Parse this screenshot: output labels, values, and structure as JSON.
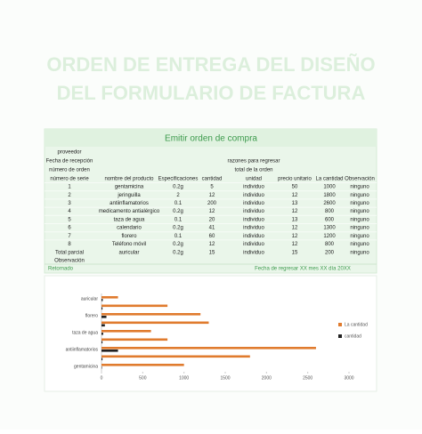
{
  "header": {
    "title_lines": [
      "ORDEN DE ENTREGA DEL DISEÑO",
      "DEL FORMULARIO DE FACTURA"
    ]
  },
  "table": {
    "caption": "Emitir orden de compra",
    "info_rows": [
      [
        "proveedor"
      ],
      [
        "Fecha de recepción",
        "razones para regresar"
      ],
      [
        "número de orden",
        "total de la orden"
      ]
    ],
    "columns": [
      "número de serie",
      "nombre del producto",
      "Especificaciones",
      "cantidad",
      "unidad",
      "precio unitario",
      "La cantidad",
      "Observación"
    ],
    "rows": [
      [
        1,
        "gentamicina",
        "0.2g",
        5,
        "individuo",
        50,
        1000,
        "ninguno"
      ],
      [
        2,
        "jeringuilla",
        2,
        12,
        "individuo",
        12,
        1800,
        "ninguno"
      ],
      [
        3,
        "antiinflamatorios",
        0.1,
        200,
        "individuo",
        13,
        2600,
        "ninguno"
      ],
      [
        4,
        "medicamento antialérgico",
        "0.2g",
        12,
        "individuo",
        12,
        800,
        "ninguno"
      ],
      [
        5,
        "taza de agua",
        0.1,
        20,
        "individuo",
        13,
        600,
        "ninguno"
      ],
      [
        6,
        "calendario",
        "0.2g",
        41,
        "individuo",
        12,
        1300,
        "ninguno"
      ],
      [
        7,
        "florero",
        0.1,
        60,
        "individuo",
        12,
        1200,
        "ninguno"
      ],
      [
        8,
        "Teléfono móvil",
        "0.2g",
        12,
        "individuo",
        12,
        800,
        "ninguno"
      ]
    ],
    "subtotal": [
      "Total parcial",
      "auricular",
      "0.2g",
      15,
      "individuo",
      15,
      200,
      "ninguno"
    ],
    "observation": "Observación"
  },
  "footer": {
    "left": "Retornado",
    "right": "Fecha de regresar XX mes XX día 20XX"
  },
  "chart_data": {
    "type": "barh",
    "categories": [
      "gentamicina",
      null,
      "antiinflamatorios",
      null,
      "taza de agua",
      null,
      "florero",
      null,
      "auricular"
    ],
    "series": [
      {
        "name": "La cantidad",
        "color": "#e07b2e",
        "values": [
          1000,
          1800,
          2600,
          800,
          600,
          1300,
          1200,
          800,
          200
        ]
      },
      {
        "name": "cantidad",
        "color": "#222222",
        "values": [
          5,
          12,
          200,
          12,
          20,
          41,
          60,
          12,
          15
        ]
      }
    ],
    "xlim": [
      0,
      3000
    ],
    "xticks": [
      0,
      500,
      1000,
      1500,
      2000,
      2500,
      3000
    ],
    "legend": "right"
  }
}
